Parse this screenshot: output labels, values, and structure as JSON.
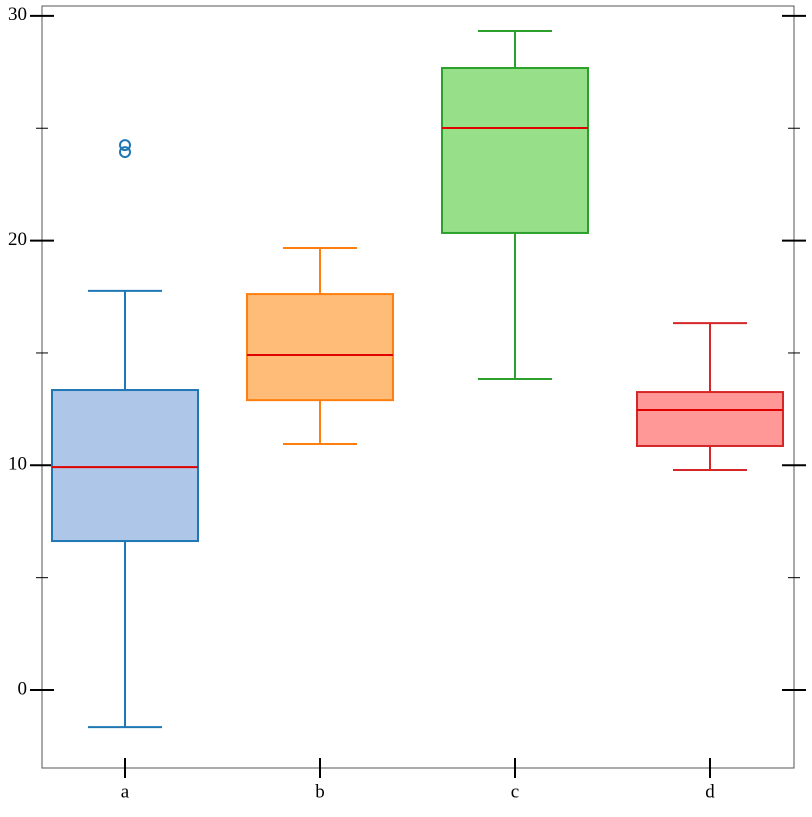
{
  "chart_data": {
    "type": "box",
    "categories": [
      "a",
      "b",
      "c",
      "d"
    ],
    "boxes": [
      {
        "whislo": -1.65,
        "q1": 6.63,
        "med": 9.92,
        "q3": 13.35,
        "whishi": 17.76,
        "fliers": [
          24.25,
          23.94
        ],
        "color": "#1f77b4",
        "fill": "#aec7e8"
      },
      {
        "whislo": 10.95,
        "q1": 12.9,
        "med": 14.91,
        "q3": 17.62,
        "whishi": 19.67,
        "fliers": [],
        "color": "#ff7f0e",
        "fill": "#ffbb78"
      },
      {
        "whislo": 13.84,
        "q1": 20.34,
        "med": 25.01,
        "q3": 27.68,
        "whishi": 29.33,
        "fliers": [],
        "color": "#2ca02c",
        "fill": "#98df8a"
      },
      {
        "whislo": 9.79,
        "q1": 10.86,
        "med": 12.46,
        "q3": 13.26,
        "whishi": 16.33,
        "fliers": [],
        "color": "#d62728",
        "fill": "#ff9896"
      }
    ],
    "median_color": "#e00000",
    "ylim": [
      -3.47,
      30.44
    ],
    "yticks": [
      0,
      10,
      20,
      30
    ],
    "minor_yticks": [
      5,
      15,
      25
    ]
  }
}
